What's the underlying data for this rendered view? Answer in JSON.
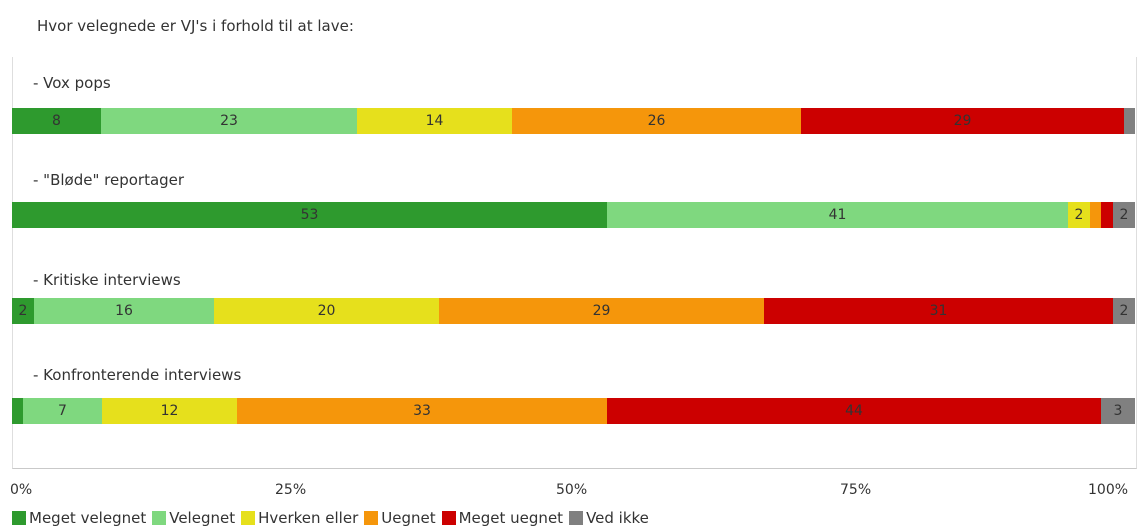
{
  "chart_data": {
    "type": "bar",
    "orientation": "horizontal",
    "stacked": true,
    "normalized": true,
    "title": "Hvor velegnede er VJ's i forhold til at lave:",
    "categories": [
      "- Vox pops",
      "- \"Bløde\" reportager",
      "- Kritiske interviews",
      "- Konfronterende interviews"
    ],
    "series": [
      {
        "name": "Meget velegnet",
        "color": "#2e9a2e",
        "values": [
          8,
          53,
          2,
          1
        ],
        "labels": [
          "8",
          "53",
          "2",
          ""
        ]
      },
      {
        "name": "Velegnet",
        "color": "#7fd87f",
        "values": [
          23,
          41,
          16,
          7
        ],
        "labels": [
          "23",
          "41",
          "16",
          "7"
        ]
      },
      {
        "name": "Hverken eller",
        "color": "#e6e01c",
        "values": [
          14,
          2,
          20,
          12
        ],
        "labels": [
          "14",
          "2",
          "20",
          "12"
        ]
      },
      {
        "name": "Uegnet",
        "color": "#f5960b",
        "values": [
          26,
          1,
          29,
          33
        ],
        "labels": [
          "26",
          "",
          "29",
          "33"
        ]
      },
      {
        "name": "Meget uegnet",
        "color": "#cc0000",
        "values": [
          29,
          1,
          31,
          44
        ],
        "labels": [
          "29",
          "",
          "31",
          "44"
        ]
      },
      {
        "name": "Ved ikke",
        "color": "#808080",
        "values": [
          1,
          2,
          2,
          3
        ],
        "labels": [
          "",
          "2",
          "2",
          "3"
        ]
      }
    ],
    "xlim": [
      0,
      100
    ],
    "xticks": [
      "0%",
      "25%",
      "50%",
      "75%",
      "100%"
    ],
    "legend_position": "bottom",
    "grid": false
  }
}
